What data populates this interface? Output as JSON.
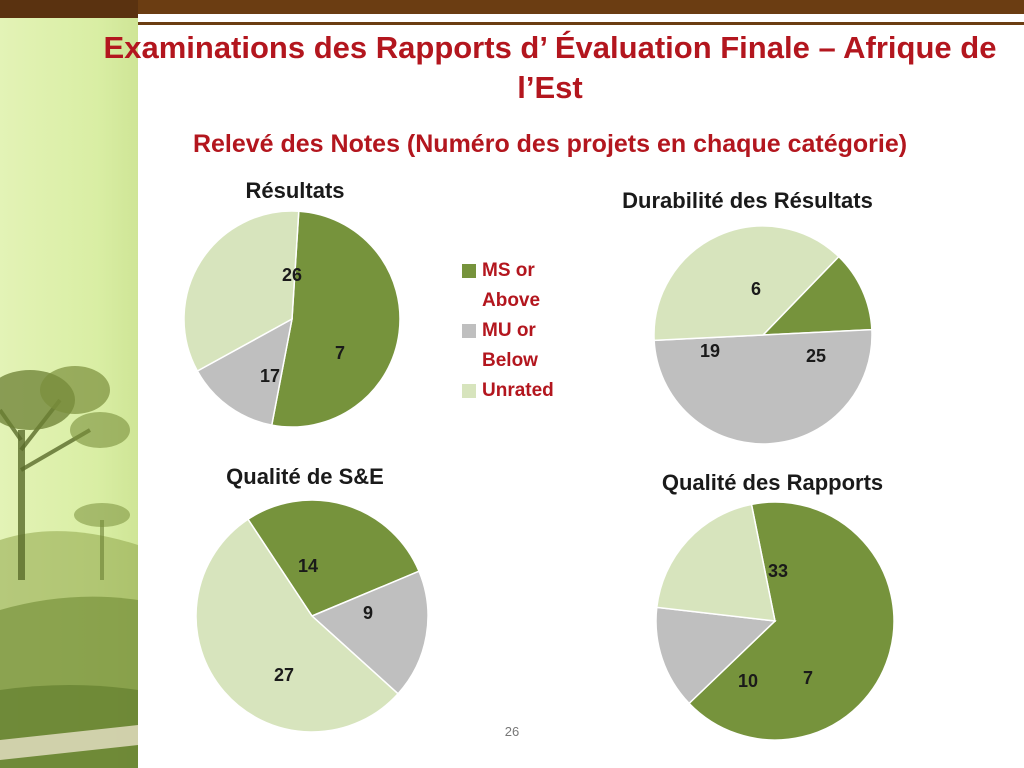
{
  "slide": {
    "title": "Examinations des Rapports d’ Évaluation Finale – Afrique de l’Est",
    "subtitle": "Relevé des Notes  (Numéro des projets en chaque catégorie)",
    "page_number": "26"
  },
  "colors": {
    "ms_or_above": "#76933c",
    "mu_or_below": "#bfbfbf",
    "unrated": "#d7e4bd",
    "title_red": "#b3161e",
    "brown_bar": "#6b3d12"
  },
  "legend": {
    "items": [
      {
        "label": "MS or Above",
        "color": "#76933c"
      },
      {
        "label": "MU or Below",
        "color": "#bfbfbf"
      },
      {
        "label": "Unrated",
        "color": "#d7e4bd"
      }
    ]
  },
  "chart_data": [
    {
      "type": "pie",
      "title": "Résultats",
      "categories": [
        "MS or Above",
        "MU or Below",
        "Unrated"
      ],
      "values": [
        26,
        7,
        17
      ],
      "colors": [
        "#76933c",
        "#bfbfbf",
        "#d7e4bd"
      ],
      "legend": "right"
    },
    {
      "type": "pie",
      "title": "Durabilité des Résultats",
      "categories": [
        "MS or Above",
        "MU or Below",
        "Unrated"
      ],
      "values": [
        6,
        25,
        19
      ],
      "colors": [
        "#76933c",
        "#bfbfbf",
        "#d7e4bd"
      ]
    },
    {
      "type": "pie",
      "title": "Qualité de S&E",
      "categories": [
        "MS or Above",
        "MU or Below",
        "Unrated"
      ],
      "values": [
        14,
        9,
        27
      ],
      "colors": [
        "#76933c",
        "#bfbfbf",
        "#d7e4bd"
      ]
    },
    {
      "type": "pie",
      "title": "Qualité des Rapports",
      "categories": [
        "MS or Above",
        "MU or Below",
        "Unrated"
      ],
      "values": [
        33,
        7,
        10
      ],
      "colors": [
        "#76933c",
        "#bfbfbf",
        "#d7e4bd"
      ]
    }
  ]
}
